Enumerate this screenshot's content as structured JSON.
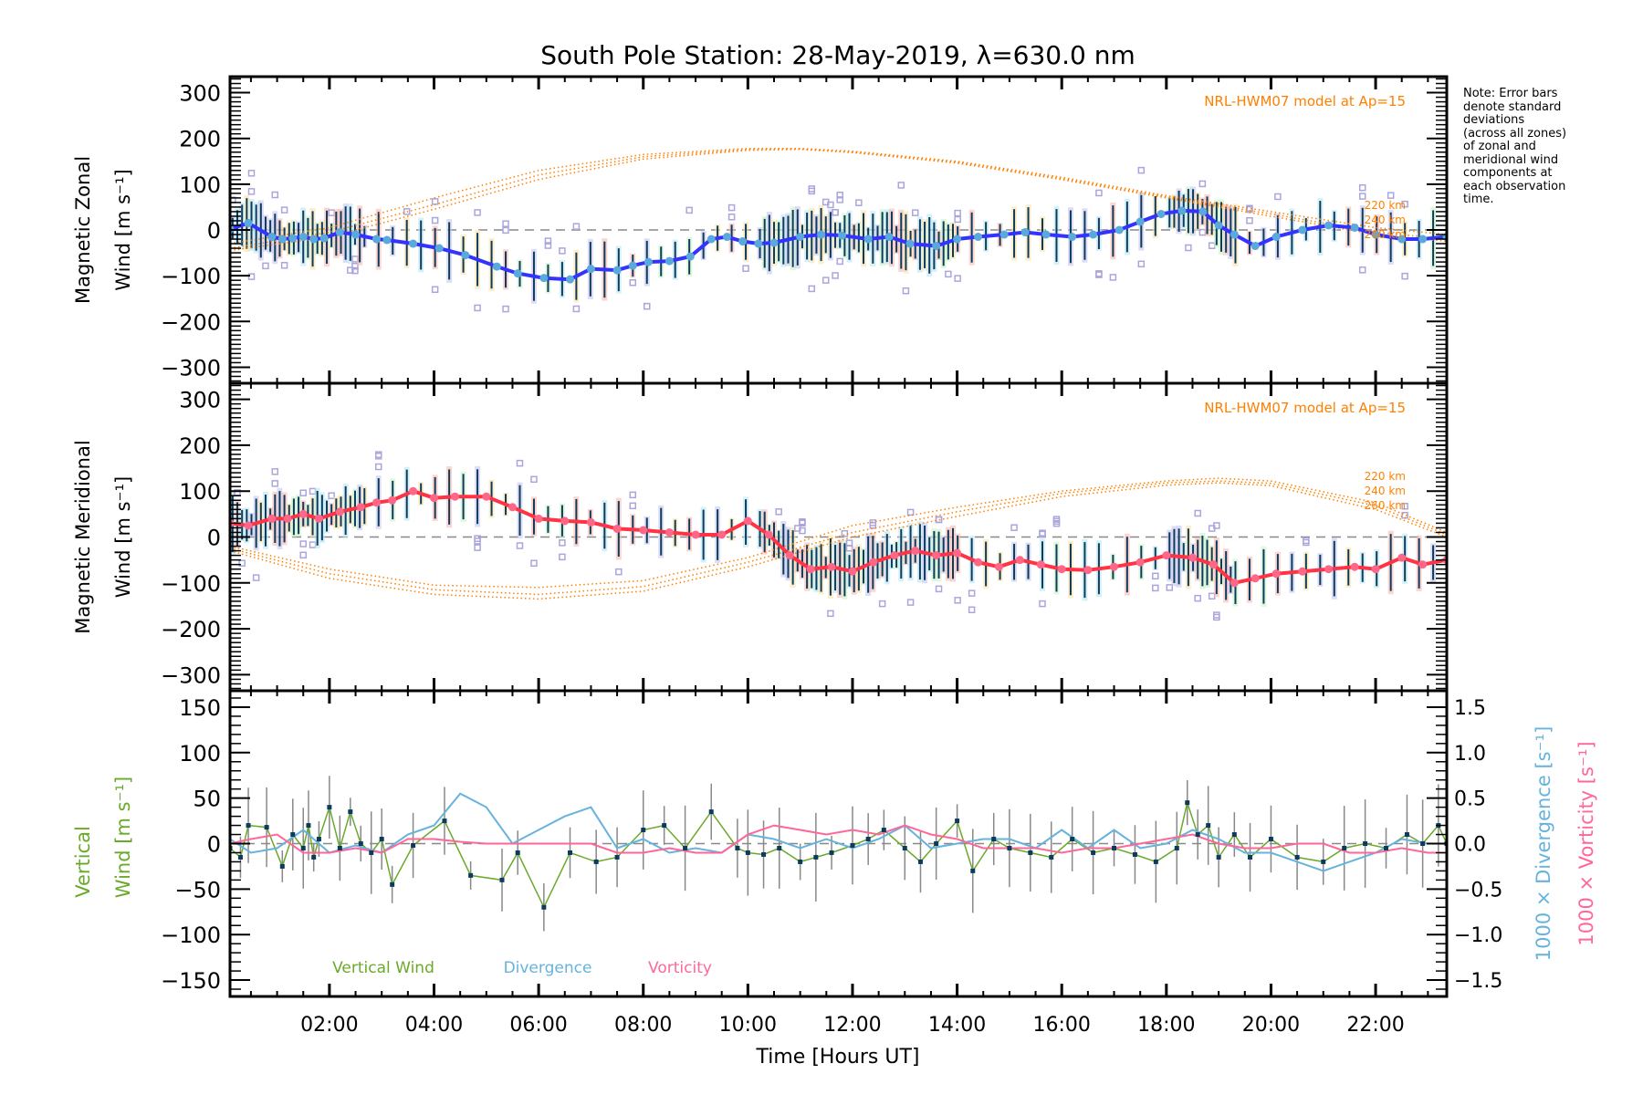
{
  "chart_data": {
    "title": "South Pole Station: 28-May-2019, λ=630.0 nm",
    "note": "Note: Error bars\ndenote standard\ndeviations\n(across all zones)\nof zonal and\nmeridional wind\ncomponents at\neach observation\ntime.",
    "xlabel": "Time [Hours UT]",
    "xlim": [
      0.1,
      23.36
    ],
    "xticks": [
      2,
      4,
      6,
      8,
      10,
      12,
      14,
      16,
      18,
      20,
      22
    ],
    "xtick_labels": [
      "02:00",
      "04:00",
      "06:00",
      "08:00",
      "10:00",
      "12:00",
      "14:00",
      "16:00",
      "18:00",
      "20:00",
      "22:00"
    ],
    "panels": [
      {
        "id": "zonal",
        "type": "line",
        "ylabel_line1": "Magnetic Zonal",
        "ylabel_line2": "Wind [m s⁻¹]",
        "ylim": [
          -335,
          335
        ],
        "yticks": [
          300,
          200,
          100,
          0,
          -100,
          -200,
          -300
        ],
        "ytick_labels": [
          "300",
          "200",
          "100",
          "0",
          "−100",
          "−200",
          "−300"
        ],
        "model_label": "NRL-HWM07 model at Ap=15",
        "model_alt_labels": [
          "220 km",
          "240 km",
          "260 km"
        ],
        "series": [
          {
            "name": "Zonal wind (mean)",
            "color": "#3333ff",
            "marker_color": "#5aa9dc",
            "x": [
              0.1,
              0.45,
              0.9,
              1.1,
              1.3,
              1.5,
              1.7,
              1.9,
              2.2,
              2.5,
              2.9,
              3.1,
              3.6,
              4.1,
              4.6,
              5.2,
              5.6,
              6.1,
              6.6,
              7.0,
              7.5,
              7.8,
              8.1,
              8.5,
              8.9,
              9.3,
              9.6,
              9.9,
              10.2,
              10.5,
              11.0,
              11.4,
              11.8,
              12.3,
              12.7,
              13.1,
              13.6,
              14.0,
              14.4,
              14.9,
              15.3,
              15.7,
              16.2,
              16.6,
              17.1,
              17.5,
              17.9,
              18.3,
              18.7,
              19.0,
              19.3,
              19.7,
              20.1,
              20.6,
              21.1,
              21.6,
              22.0,
              22.5,
              22.9,
              23.36
            ],
            "y": [
              2,
              15,
              -15,
              -20,
              -18,
              -15,
              -20,
              -18,
              -5,
              -10,
              -20,
              -22,
              -30,
              -40,
              -55,
              -80,
              -95,
              -105,
              -108,
              -85,
              -88,
              -78,
              -70,
              -68,
              -58,
              -20,
              -15,
              -25,
              -30,
              -28,
              -15,
              -10,
              -12,
              -20,
              -15,
              -30,
              -35,
              -20,
              -15,
              -10,
              -5,
              -10,
              -15,
              -10,
              0,
              18,
              35,
              42,
              40,
              10,
              -10,
              -35,
              -15,
              0,
              10,
              5,
              -10,
              -20,
              -20,
              -15
            ]
          },
          {
            "name": "HWM07 220 km",
            "color": "#ff8000",
            "style": "dotted",
            "x": [
              0.1,
              2,
              4,
              6,
              8,
              10,
              11,
              12,
              14,
              16,
              18,
              20,
              22,
              23.36
            ],
            "y": [
              -30,
              5,
              70,
              130,
              165,
              178,
              178,
              172,
              150,
              115,
              75,
              40,
              5,
              -10
            ]
          },
          {
            "name": "HWM07 240 km",
            "color": "#ff8000",
            "style": "dotted",
            "x": [
              0.1,
              2,
              4,
              6,
              8,
              10,
              11,
              12,
              14,
              16,
              18,
              20,
              22,
              23.36
            ],
            "y": [
              -40,
              -5,
              55,
              120,
              160,
              176,
              177,
              170,
              148,
              112,
              72,
              35,
              -5,
              -20
            ]
          },
          {
            "name": "HWM07 260 km",
            "color": "#ff8000",
            "style": "dotted",
            "x": [
              0.1,
              2,
              4,
              6,
              8,
              10,
              11,
              12,
              14,
              16,
              18,
              20,
              22,
              23.36
            ],
            "y": [
              -45,
              -15,
              45,
              110,
              155,
              174,
              176,
              169,
              146,
              110,
              70,
              30,
              -10,
              -25
            ]
          }
        ]
      },
      {
        "id": "meridional",
        "type": "line",
        "ylabel_line1": "Magnetic Meridional",
        "ylabel_line2": "Wind [m s⁻¹]",
        "ylim": [
          -335,
          335
        ],
        "yticks": [
          300,
          200,
          100,
          0,
          -100,
          -200,
          -300
        ],
        "ytick_labels": [
          "300",
          "200",
          "100",
          "0",
          "−100",
          "−200",
          "−300"
        ],
        "model_label": "NRL-HWM07 model at Ap=15",
        "model_alt_labels": [
          "220 km",
          "240 km",
          "260 km"
        ],
        "series": [
          {
            "name": "Meridional wind (mean)",
            "color": "#ff3344",
            "marker_color": "#ff6688",
            "x": [
              0.1,
              0.45,
              0.9,
              1.2,
              1.5,
              1.8,
              2.2,
              2.6,
              2.9,
              3.2,
              3.6,
              4.0,
              4.4,
              5.0,
              5.5,
              6.0,
              6.5,
              7.0,
              7.5,
              8.0,
              8.5,
              9.0,
              9.5,
              10.0,
              10.4,
              10.8,
              11.2,
              11.6,
              12.0,
              12.4,
              12.8,
              13.2,
              13.6,
              14.0,
              14.4,
              14.8,
              15.2,
              15.6,
              16.0,
              16.5,
              17.0,
              17.5,
              18.0,
              18.5,
              18.9,
              19.3,
              19.7,
              20.1,
              20.6,
              21.1,
              21.6,
              22.0,
              22.5,
              22.9,
              23.36
            ],
            "y": [
              30,
              25,
              40,
              40,
              50,
              40,
              55,
              65,
              75,
              80,
              100,
              85,
              88,
              88,
              65,
              40,
              35,
              32,
              18,
              15,
              10,
              5,
              5,
              35,
              5,
              -40,
              -70,
              -65,
              -75,
              -55,
              -40,
              -30,
              -40,
              -35,
              -55,
              -65,
              -50,
              -60,
              -70,
              -72,
              -65,
              -55,
              -40,
              -45,
              -60,
              -100,
              -90,
              -80,
              -75,
              -70,
              -65,
              -70,
              -45,
              -60,
              -50
            ]
          },
          {
            "name": "HWM07 220 km",
            "color": "#ff8000",
            "style": "dotted",
            "x": [
              0.1,
              2,
              4,
              6,
              8,
              10,
              12,
              14,
              16,
              18,
              19,
              20,
              22,
              23.36
            ],
            "y": [
              -20,
              -70,
              -105,
              -110,
              -95,
              -45,
              25,
              65,
              100,
              122,
              128,
              122,
              75,
              10
            ]
          },
          {
            "name": "HWM07 240 km",
            "color": "#ff8000",
            "style": "dotted",
            "x": [
              0.1,
              2,
              4,
              6,
              8,
              10,
              12,
              14,
              16,
              18,
              19,
              20,
              22,
              23.36
            ],
            "y": [
              -25,
              -80,
              -115,
              -125,
              -108,
              -55,
              10,
              55,
              95,
              118,
              122,
              117,
              68,
              5
            ]
          },
          {
            "name": "HWM07 260 km",
            "color": "#ff8000",
            "style": "dotted",
            "x": [
              0.1,
              2,
              4,
              6,
              8,
              10,
              12,
              14,
              16,
              18,
              19,
              20,
              22,
              23.36
            ],
            "y": [
              -30,
              -90,
              -125,
              -135,
              -118,
              -65,
              0,
              45,
              88,
              113,
              118,
              112,
              60,
              0
            ]
          }
        ]
      },
      {
        "id": "vertical",
        "type": "line",
        "ylabel_line1": "Vertical",
        "ylabel_line2": "Wind [m s⁻¹]",
        "ylim": [
          -168,
          168
        ],
        "yticks": [
          150,
          100,
          50,
          0,
          -50,
          -100,
          -150
        ],
        "ytick_labels": [
          "150",
          "100",
          "50",
          "0",
          "−50",
          "−100",
          "−150"
        ],
        "y2lim": [
          -1.68,
          1.68
        ],
        "y2ticks": [
          1.5,
          1.0,
          0.5,
          0.0,
          -0.5,
          -1.0,
          -1.5
        ],
        "y2tick_labels": [
          "1.5",
          "1.0",
          "0.5",
          "0.0",
          "−0.5",
          "−1.0",
          "−1.5"
        ],
        "y2label_div": "1000 × Divergence [s⁻¹]",
        "y2label_vor": "1000 × Vorticity [s⁻¹]",
        "legend": [
          {
            "label": "Vertical Wind",
            "color": "#6aaa2a"
          },
          {
            "label": "Divergence",
            "color": "#66b3dd"
          },
          {
            "label": "Vorticity",
            "color": "#ff6699"
          }
        ],
        "series": [
          {
            "name": "Vertical Wind",
            "color": "#6aaa2a",
            "axis": "left",
            "x": [
              0.1,
              0.3,
              0.45,
              0.8,
              1.1,
              1.3,
              1.5,
              1.6,
              1.7,
              1.8,
              2.0,
              2.2,
              2.4,
              2.6,
              2.8,
              3.0,
              3.2,
              3.6,
              4.2,
              4.7,
              5.3,
              5.6,
              6.1,
              6.6,
              7.1,
              7.5,
              8.0,
              8.4,
              8.8,
              9.3,
              9.8,
              10.0,
              10.3,
              10.6,
              11.0,
              11.3,
              11.6,
              12.0,
              12.3,
              12.6,
              13.0,
              13.3,
              13.6,
              14.0,
              14.3,
              14.7,
              15.0,
              15.4,
              15.8,
              16.2,
              16.6,
              17.0,
              17.4,
              17.8,
              18.2,
              18.4,
              18.6,
              18.8,
              19.0,
              19.3,
              19.6,
              20.0,
              20.5,
              21.0,
              21.4,
              21.8,
              22.2,
              22.6,
              22.9,
              23.2,
              23.36
            ],
            "y": [
              -5,
              -15,
              20,
              18,
              -25,
              10,
              -5,
              20,
              -15,
              5,
              40,
              -5,
              35,
              0,
              -10,
              5,
              -45,
              -2,
              25,
              -35,
              -40,
              -10,
              -70,
              -10,
              -20,
              -15,
              15,
              20,
              -5,
              35,
              -5,
              -10,
              -12,
              -5,
              -20,
              -15,
              -10,
              -2,
              5,
              15,
              -5,
              -20,
              0,
              25,
              -30,
              5,
              -5,
              -10,
              -15,
              5,
              -10,
              -5,
              -12,
              -20,
              -5,
              45,
              10,
              20,
              -15,
              10,
              -15,
              5,
              -15,
              -20,
              -5,
              0,
              -5,
              10,
              0,
              20,
              0
            ]
          },
          {
            "name": "Divergence",
            "color": "#66b3dd",
            "axis": "right",
            "x": [
              0.1,
              0.5,
              1.0,
              1.5,
              2.0,
              2.5,
              3.0,
              3.5,
              4.0,
              4.5,
              5.0,
              5.5,
              6.0,
              6.5,
              7.0,
              7.5,
              8.0,
              8.5,
              9.0,
              9.5,
              10.0,
              10.5,
              11.0,
              11.5,
              12.0,
              12.5,
              13.0,
              13.5,
              14.0,
              14.5,
              15.0,
              15.5,
              16.0,
              16.5,
              17.0,
              17.5,
              18.0,
              18.5,
              19.0,
              19.5,
              20.0,
              20.5,
              21.0,
              21.5,
              22.0,
              22.5,
              23.0,
              23.36
            ],
            "y": [
              0.05,
              -0.1,
              -0.05,
              0.15,
              -0.1,
              -0.02,
              -0.1,
              0.1,
              0.2,
              0.55,
              0.4,
              0.0,
              0.15,
              0.3,
              0.4,
              -0.05,
              0.05,
              -0.1,
              -0.05,
              -0.1,
              0.1,
              0.05,
              -0.05,
              0.05,
              -0.05,
              0.05,
              0.2,
              -0.05,
              0.0,
              0.05,
              0.05,
              -0.05,
              0.15,
              -0.05,
              0.15,
              -0.05,
              0.0,
              0.15,
              0.05,
              -0.1,
              -0.1,
              -0.2,
              -0.3,
              -0.2,
              -0.1,
              0.05,
              0.0,
              0.0
            ]
          },
          {
            "name": "Vorticity",
            "color": "#ff6699",
            "axis": "right",
            "x": [
              0.1,
              0.5,
              1.0,
              1.5,
              2.0,
              2.5,
              3.0,
              3.5,
              4.0,
              4.5,
              5.0,
              5.5,
              6.0,
              6.5,
              7.0,
              7.5,
              8.0,
              8.5,
              9.0,
              9.5,
              10.0,
              10.5,
              11.0,
              11.5,
              12.0,
              12.5,
              13.0,
              13.5,
              14.0,
              14.5,
              15.0,
              15.5,
              16.0,
              16.5,
              17.0,
              17.5,
              18.0,
              18.5,
              19.0,
              19.5,
              20.0,
              20.5,
              21.0,
              21.5,
              22.0,
              22.5,
              23.0,
              23.36
            ],
            "y": [
              0.0,
              0.05,
              0.1,
              -0.1,
              -0.1,
              -0.05,
              -0.1,
              0.05,
              0.05,
              0.02,
              0.0,
              0.0,
              0.0,
              0.0,
              0.0,
              -0.1,
              -0.1,
              -0.05,
              -0.1,
              -0.1,
              0.1,
              0.2,
              0.15,
              0.1,
              0.15,
              0.1,
              0.2,
              0.1,
              0.05,
              -0.05,
              -0.05,
              -0.05,
              -0.1,
              -0.05,
              -0.05,
              0.0,
              0.05,
              0.1,
              0.0,
              -0.05,
              -0.05,
              0.0,
              0.0,
              -0.1,
              -0.1,
              -0.05,
              -0.1,
              -0.1
            ]
          }
        ]
      }
    ]
  }
}
